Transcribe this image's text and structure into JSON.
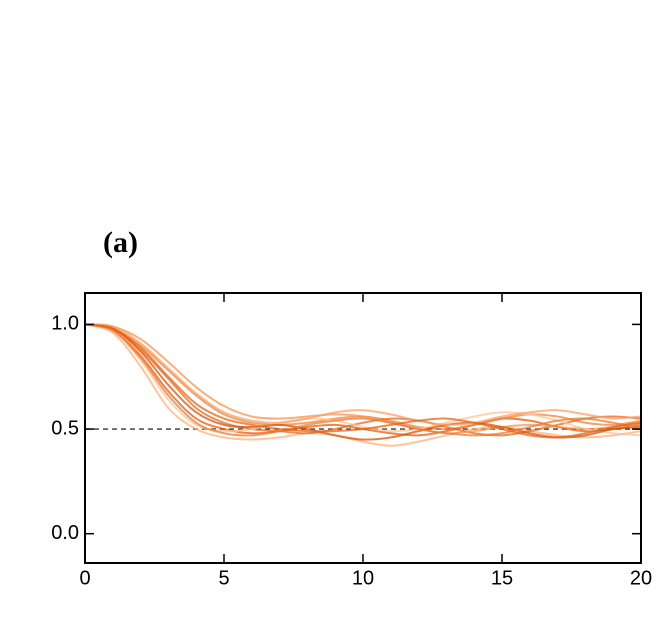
{
  "chart_data": {
    "type": "line",
    "annotation": "(a)",
    "x": [
      0,
      1,
      2,
      3,
      4,
      5,
      6,
      7,
      8,
      9,
      10,
      11,
      12,
      13,
      14,
      15,
      16,
      17,
      18,
      19,
      20
    ],
    "series": [
      {
        "color": "#e8590c",
        "values": [
          1,
          0.97,
          0.85,
          0.68,
          0.55,
          0.5,
          0.48,
          0.49,
          0.51,
          0.52,
          0.5,
          0.48,
          0.47,
          0.49,
          0.52,
          0.55,
          0.54,
          0.51,
          0.49,
          0.5,
          0.52
        ]
      },
      {
        "color": "#f0843c",
        "values": [
          1,
          0.98,
          0.9,
          0.78,
          0.66,
          0.57,
          0.53,
          0.52,
          0.53,
          0.55,
          0.56,
          0.54,
          0.51,
          0.5,
          0.52,
          0.55,
          0.57,
          0.56,
          0.53,
          0.52,
          0.54
        ]
      },
      {
        "color": "#fdb07a",
        "values": [
          1,
          0.96,
          0.8,
          0.6,
          0.5,
          0.46,
          0.45,
          0.46,
          0.48,
          0.47,
          0.44,
          0.42,
          0.44,
          0.47,
          0.5,
          0.51,
          0.49,
          0.47,
          0.46,
          0.47,
          0.49
        ]
      },
      {
        "color": "#e66a1e",
        "values": [
          1,
          0.98,
          0.88,
          0.74,
          0.6,
          0.53,
          0.5,
          0.49,
          0.48,
          0.5,
          0.53,
          0.55,
          0.54,
          0.51,
          0.48,
          0.47,
          0.49,
          0.52,
          0.55,
          0.56,
          0.55
        ]
      },
      {
        "color": "#f5954f",
        "values": [
          1,
          0.99,
          0.93,
          0.82,
          0.7,
          0.61,
          0.56,
          0.55,
          0.56,
          0.57,
          0.56,
          0.53,
          0.5,
          0.48,
          0.49,
          0.51,
          0.52,
          0.51,
          0.5,
          0.51,
          0.53
        ]
      },
      {
        "color": "#fcc497",
        "values": [
          1,
          0.97,
          0.83,
          0.64,
          0.52,
          0.49,
          0.5,
          0.53,
          0.55,
          0.54,
          0.51,
          0.49,
          0.5,
          0.53,
          0.56,
          0.58,
          0.57,
          0.54,
          0.5,
          0.48,
          0.47
        ]
      },
      {
        "color": "#d9520a",
        "values": [
          1,
          0.98,
          0.87,
          0.71,
          0.58,
          0.52,
          0.51,
          0.52,
          0.5,
          0.47,
          0.45,
          0.46,
          0.49,
          0.52,
          0.53,
          0.51,
          0.48,
          0.46,
          0.47,
          0.5,
          0.51
        ]
      },
      {
        "color": "#f7a265",
        "values": [
          1,
          0.99,
          0.91,
          0.79,
          0.67,
          0.58,
          0.54,
          0.53,
          0.55,
          0.58,
          0.59,
          0.57,
          0.54,
          0.52,
          0.53,
          0.56,
          0.58,
          0.59,
          0.57,
          0.55,
          0.56
        ]
      },
      {
        "color": "#ee7a30",
        "values": [
          1,
          0.97,
          0.84,
          0.66,
          0.53,
          0.48,
          0.47,
          0.49,
          0.52,
          0.54,
          0.55,
          0.53,
          0.5,
          0.48,
          0.47,
          0.48,
          0.51,
          0.54,
          0.55,
          0.53,
          0.5
        ]
      },
      {
        "color": "#e36414",
        "values": [
          1,
          0.98,
          0.89,
          0.75,
          0.62,
          0.55,
          0.52,
          0.5,
          0.49,
          0.49,
          0.5,
          0.52,
          0.54,
          0.55,
          0.53,
          0.5,
          0.47,
          0.46,
          0.48,
          0.51,
          0.53
        ]
      }
    ],
    "reference_line": 0.5,
    "xlim": [
      0,
      20
    ],
    "xticks": [
      0,
      5,
      10,
      15,
      20
    ],
    "ylim": [
      -0.14,
      1.15
    ],
    "yticks": [
      {
        "value": 0,
        "label": "0.0"
      },
      0.5,
      {
        "value": 1,
        "label": "1.0"
      }
    ]
  }
}
